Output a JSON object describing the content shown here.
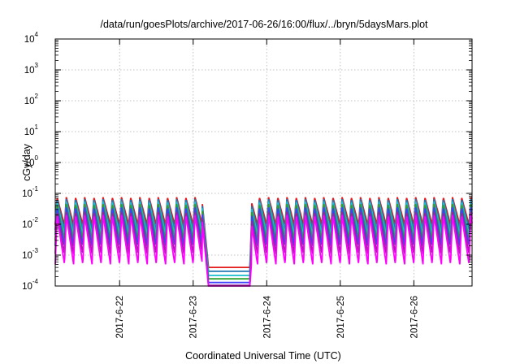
{
  "chart_data": {
    "type": "line",
    "title": "/data/run/goesPlots/archive/2017-06-26/16:00/flux/../bryn/5daysMars.plot",
    "xlabel": "Coordinated Universal Time (UTC)",
    "ylabel": "cGy/day",
    "yscale": "log",
    "ylim": [
      0.0001,
      10000
    ],
    "xlim": [
      "2017-06-21 03:00",
      "2017-06-26 19:00"
    ],
    "grid": true,
    "y_ticks": [
      {
        "base": "10",
        "exp": "-4",
        "value": 0.0001
      },
      {
        "base": "10",
        "exp": "-3",
        "value": 0.001
      },
      {
        "base": "10",
        "exp": "-2",
        "value": 0.01
      },
      {
        "base": "10",
        "exp": "-1",
        "value": 0.1
      },
      {
        "base": "10",
        "exp": "0",
        "value": 1
      },
      {
        "base": "10",
        "exp": "1",
        "value": 10
      },
      {
        "base": "10",
        "exp": "2",
        "value": 100
      },
      {
        "base": "10",
        "exp": "3",
        "value": 1000
      },
      {
        "base": "10",
        "exp": "4",
        "value": 10000
      }
    ],
    "x_ticks": [
      "2017-6-22",
      "2017-6-23",
      "2017-6-24",
      "2017-6-25",
      "2017-6-26"
    ],
    "x_tick_dates": [
      "2017-06-22 00:00",
      "2017-06-23 00:00",
      "2017-06-24 00:00",
      "2017-06-25 00:00",
      "2017-06-26 00:00"
    ],
    "oscillation_period_hours": 3,
    "dropout": {
      "start": "2017-06-23 03:00",
      "end": "2017-06-23 19:00"
    },
    "series": [
      {
        "color": "#e41a1c",
        "peak": 0.075,
        "trough": 0.0095,
        "dropout_level": 0.0004
      },
      {
        "color": "#1f77b4",
        "peak": 0.065,
        "trough": 0.0065,
        "dropout_level": 0.0003
      },
      {
        "color": "#17becf",
        "peak": 0.055,
        "trough": 0.0045,
        "dropout_level": 0.00022
      },
      {
        "color": "#2ca02c",
        "peak": 0.045,
        "trough": 0.003,
        "dropout_level": 0.00017
      },
      {
        "color": "#4040ff",
        "peak": 0.035,
        "trough": 0.002,
        "dropout_level": 0.00013
      },
      {
        "color": "#a020a0",
        "peak": 0.025,
        "trough": 0.0011,
        "dropout_level": 0.000105
      },
      {
        "color": "#ff00ff",
        "peak": 0.02,
        "trough": 0.0005,
        "dropout_level": 9.5e-05
      }
    ]
  }
}
